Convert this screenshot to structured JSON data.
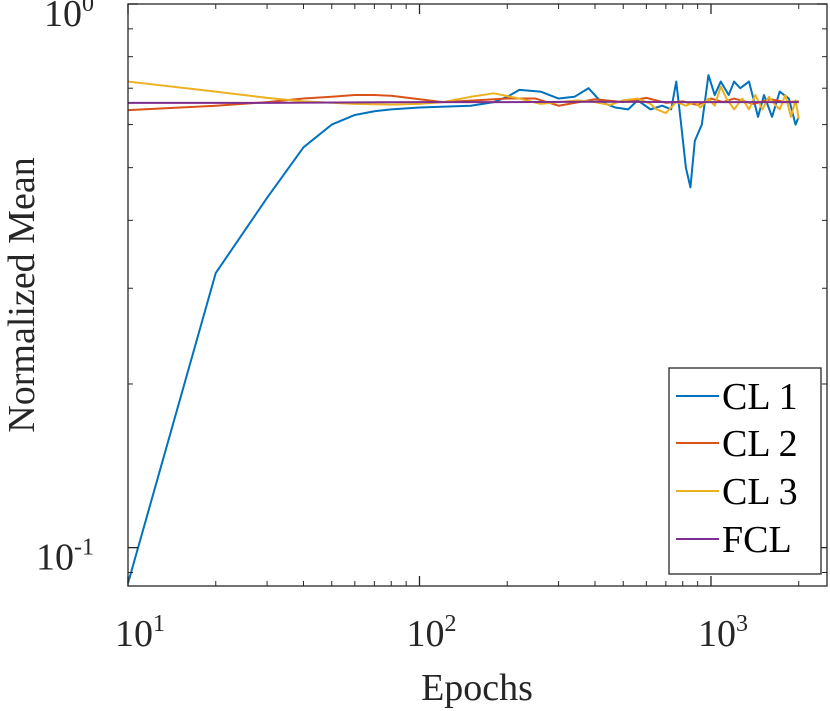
{
  "chart_data": {
    "type": "line",
    "xscale": "log",
    "yscale": "log",
    "xlim": [
      10,
      2500
    ],
    "ylim": [
      0.085,
      1.0
    ],
    "xlabel": "Epochs",
    "ylabel": "Normalized Mean",
    "grid": false,
    "legend_position": "bottom-right",
    "xticks": [
      {
        "value": 10,
        "base": "10",
        "exp": "1"
      },
      {
        "value": 100,
        "base": "10",
        "exp": "2"
      },
      {
        "value": 1000,
        "base": "10",
        "exp": "3"
      }
    ],
    "yticks": [
      {
        "value": 0.1,
        "base": "10",
        "exp": "-1"
      },
      {
        "value": 1.0,
        "base": "10",
        "exp": "0"
      }
    ],
    "series": [
      {
        "name": "CL 1",
        "color": "#0072BD",
        "points": [
          [
            10,
            0.086
          ],
          [
            20,
            0.32
          ],
          [
            30,
            0.44
          ],
          [
            40,
            0.545
          ],
          [
            50,
            0.6
          ],
          [
            60,
            0.625
          ],
          [
            70,
            0.635
          ],
          [
            80,
            0.64
          ],
          [
            100,
            0.645
          ],
          [
            150,
            0.65
          ],
          [
            180,
            0.66
          ],
          [
            200,
            0.675
          ],
          [
            220,
            0.695
          ],
          [
            260,
            0.69
          ],
          [
            300,
            0.67
          ],
          [
            340,
            0.675
          ],
          [
            380,
            0.7
          ],
          [
            420,
            0.66
          ],
          [
            470,
            0.645
          ],
          [
            520,
            0.64
          ],
          [
            560,
            0.665
          ],
          [
            620,
            0.64
          ],
          [
            680,
            0.65
          ],
          [
            730,
            0.64
          ],
          [
            760,
            0.72
          ],
          [
            790,
            0.6
          ],
          [
            820,
            0.5
          ],
          [
            850,
            0.46
          ],
          [
            880,
            0.56
          ],
          [
            930,
            0.6
          ],
          [
            980,
            0.74
          ],
          [
            1030,
            0.68
          ],
          [
            1080,
            0.72
          ],
          [
            1150,
            0.68
          ],
          [
            1200,
            0.72
          ],
          [
            1260,
            0.7
          ],
          [
            1350,
            0.72
          ],
          [
            1450,
            0.62
          ],
          [
            1520,
            0.68
          ],
          [
            1620,
            0.62
          ],
          [
            1720,
            0.69
          ],
          [
            1850,
            0.67
          ],
          [
            1950,
            0.6
          ],
          [
            2000,
            0.62
          ]
        ]
      },
      {
        "name": "CL 2",
        "color": "#D95319",
        "points": [
          [
            10,
            0.638
          ],
          [
            20,
            0.65
          ],
          [
            30,
            0.66
          ],
          [
            40,
            0.67
          ],
          [
            50,
            0.675
          ],
          [
            60,
            0.68
          ],
          [
            70,
            0.68
          ],
          [
            80,
            0.678
          ],
          [
            100,
            0.668
          ],
          [
            120,
            0.66
          ],
          [
            150,
            0.664
          ],
          [
            200,
            0.67
          ],
          [
            250,
            0.67
          ],
          [
            300,
            0.65
          ],
          [
            400,
            0.668
          ],
          [
            500,
            0.66
          ],
          [
            600,
            0.672
          ],
          [
            700,
            0.658
          ],
          [
            800,
            0.662
          ],
          [
            900,
            0.652
          ],
          [
            1000,
            0.67
          ],
          [
            1100,
            0.66
          ],
          [
            1200,
            0.67
          ],
          [
            1400,
            0.655
          ],
          [
            1600,
            0.668
          ],
          [
            1800,
            0.66
          ],
          [
            2000,
            0.662
          ]
        ]
      },
      {
        "name": "CL 3",
        "color": "#EDB120",
        "points": [
          [
            10,
            0.72
          ],
          [
            20,
            0.69
          ],
          [
            30,
            0.672
          ],
          [
            40,
            0.662
          ],
          [
            60,
            0.655
          ],
          [
            80,
            0.653
          ],
          [
            100,
            0.655
          ],
          [
            120,
            0.66
          ],
          [
            150,
            0.675
          ],
          [
            180,
            0.685
          ],
          [
            220,
            0.67
          ],
          [
            260,
            0.655
          ],
          [
            300,
            0.66
          ],
          [
            350,
            0.665
          ],
          [
            400,
            0.66
          ],
          [
            450,
            0.652
          ],
          [
            500,
            0.665
          ],
          [
            560,
            0.67
          ],
          [
            620,
            0.655
          ],
          [
            650,
            0.64
          ],
          [
            700,
            0.63
          ],
          [
            760,
            0.66
          ],
          [
            820,
            0.65
          ],
          [
            880,
            0.66
          ],
          [
            920,
            0.645
          ],
          [
            980,
            0.67
          ],
          [
            1030,
            0.65
          ],
          [
            1080,
            0.705
          ],
          [
            1130,
            0.67
          ],
          [
            1200,
            0.64
          ],
          [
            1280,
            0.67
          ],
          [
            1350,
            0.64
          ],
          [
            1420,
            0.68
          ],
          [
            1500,
            0.64
          ],
          [
            1580,
            0.675
          ],
          [
            1650,
            0.655
          ],
          [
            1720,
            0.64
          ],
          [
            1800,
            0.68
          ],
          [
            1880,
            0.62
          ],
          [
            1950,
            0.665
          ],
          [
            2000,
            0.615
          ]
        ]
      },
      {
        "name": "FCL",
        "color": "#7E2F8E",
        "points": [
          [
            10,
            0.658
          ],
          [
            30,
            0.658
          ],
          [
            100,
            0.66
          ],
          [
            200,
            0.66
          ],
          [
            400,
            0.661
          ],
          [
            800,
            0.66
          ],
          [
            1200,
            0.66
          ],
          [
            2000,
            0.66
          ]
        ]
      }
    ]
  }
}
